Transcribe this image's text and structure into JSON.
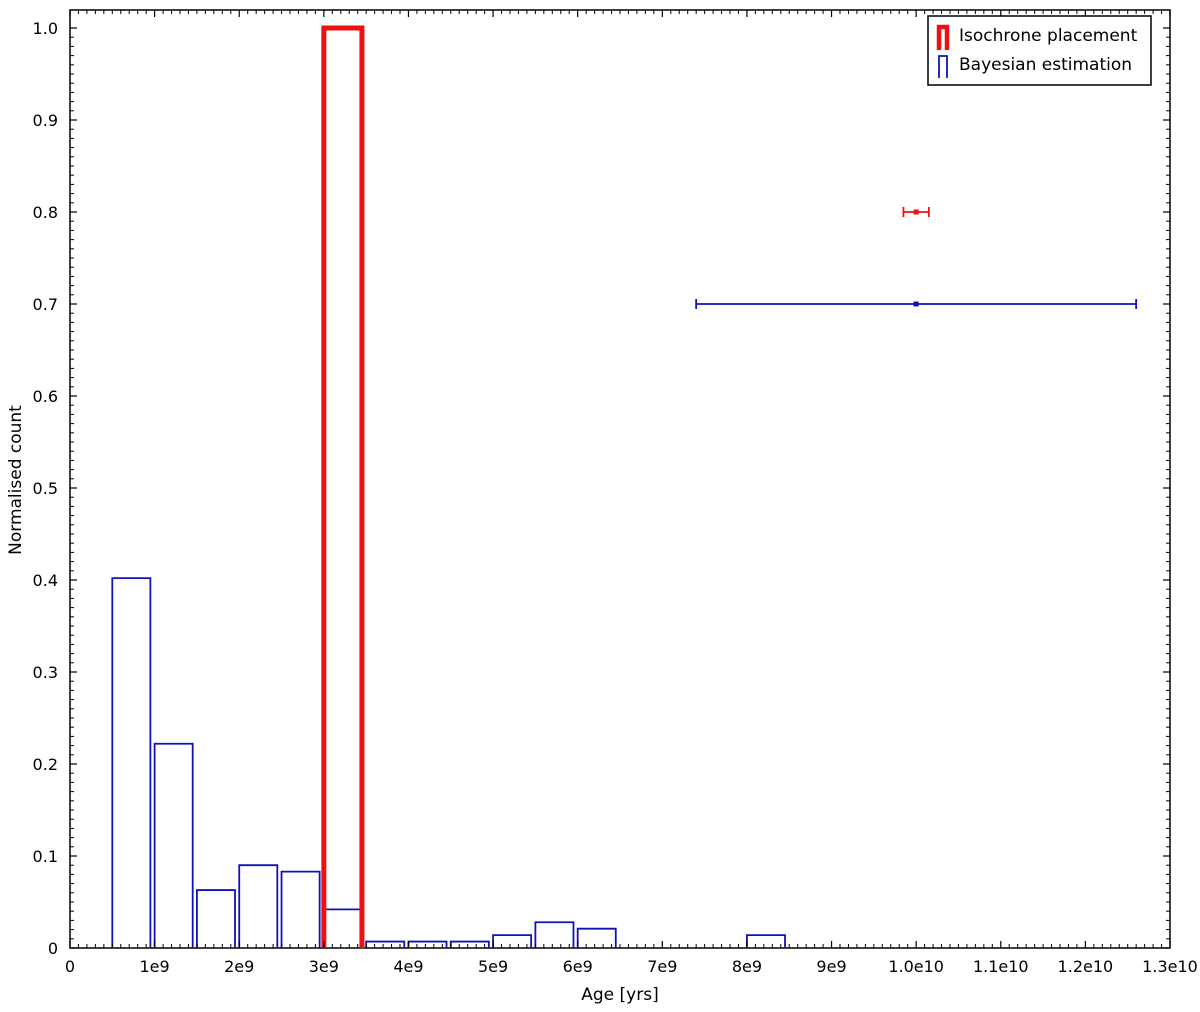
{
  "chart_data": {
    "type": "bar",
    "title": "",
    "xlabel": "Age [yrs]",
    "ylabel": "Normalised count",
    "xlim": [
      0,
      13000000000
    ],
    "ylim": [
      0,
      1.02
    ],
    "grid": false,
    "legend_position": "top-right",
    "x_ticks": [
      {
        "value": 0,
        "label": "0"
      },
      {
        "value": 1000000000,
        "label": "1e9"
      },
      {
        "value": 2000000000,
        "label": "2e9"
      },
      {
        "value": 3000000000,
        "label": "3e9"
      },
      {
        "value": 4000000000,
        "label": "4e9"
      },
      {
        "value": 5000000000,
        "label": "5e9"
      },
      {
        "value": 6000000000,
        "label": "6e9"
      },
      {
        "value": 7000000000,
        "label": "7e9"
      },
      {
        "value": 8000000000,
        "label": "8e9"
      },
      {
        "value": 9000000000,
        "label": "9e9"
      },
      {
        "value": 10000000000,
        "label": "1.0e10"
      },
      {
        "value": 11000000000,
        "label": "1.1e10"
      },
      {
        "value": 12000000000,
        "label": "1.2e10"
      },
      {
        "value": 13000000000,
        "label": "1.3e10"
      }
    ],
    "y_ticks": [
      {
        "value": 0,
        "label": "0"
      },
      {
        "value": 0.1,
        "label": "0.1"
      },
      {
        "value": 0.2,
        "label": "0.2"
      },
      {
        "value": 0.3,
        "label": "0.3"
      },
      {
        "value": 0.4,
        "label": "0.4"
      },
      {
        "value": 0.5,
        "label": "0.5"
      },
      {
        "value": 0.6,
        "label": "0.6"
      },
      {
        "value": 0.7,
        "label": "0.7"
      },
      {
        "value": 0.8,
        "label": "0.8"
      },
      {
        "value": 0.9,
        "label": "0.9"
      },
      {
        "value": 1.0,
        "label": "1.0"
      }
    ],
    "series": [
      {
        "name": "Isochrone placement",
        "color": "#ee1111",
        "style": "thick-step",
        "bins": [
          {
            "x0": 3000000000,
            "x1": 3450000000,
            "value": 1.0
          }
        ],
        "errorbar": {
          "center": 10000000000,
          "lower": 9850000000,
          "upper": 10150000000,
          "y": 0.8
        }
      },
      {
        "name": "Bayesian estimation",
        "color": "#1111bb",
        "style": "thin-step",
        "bins": [
          {
            "x0": 500000000,
            "x1": 950000000,
            "value": 0.402
          },
          {
            "x0": 1000000000,
            "x1": 1450000000,
            "value": 0.222
          },
          {
            "x0": 1500000000,
            "x1": 1950000000,
            "value": 0.063
          },
          {
            "x0": 2000000000,
            "x1": 2450000000,
            "value": 0.09
          },
          {
            "x0": 2500000000,
            "x1": 2950000000,
            "value": 0.083
          },
          {
            "x0": 3000000000,
            "x1": 3450000000,
            "value": 0.042
          },
          {
            "x0": 3500000000,
            "x1": 3950000000,
            "value": 0.007
          },
          {
            "x0": 4000000000,
            "x1": 4450000000,
            "value": 0.007
          },
          {
            "x0": 4500000000,
            "x1": 4950000000,
            "value": 0.007
          },
          {
            "x0": 5000000000,
            "x1": 5450000000,
            "value": 0.014
          },
          {
            "x0": 5500000000,
            "x1": 5950000000,
            "value": 0.028
          },
          {
            "x0": 6000000000,
            "x1": 6450000000,
            "value": 0.021
          },
          {
            "x0": 8000000000,
            "x1": 8450000000,
            "value": 0.014
          }
        ],
        "errorbar": {
          "center": 10000000000,
          "lower": 7400000000,
          "upper": 12600000000,
          "y": 0.7
        }
      }
    ]
  }
}
